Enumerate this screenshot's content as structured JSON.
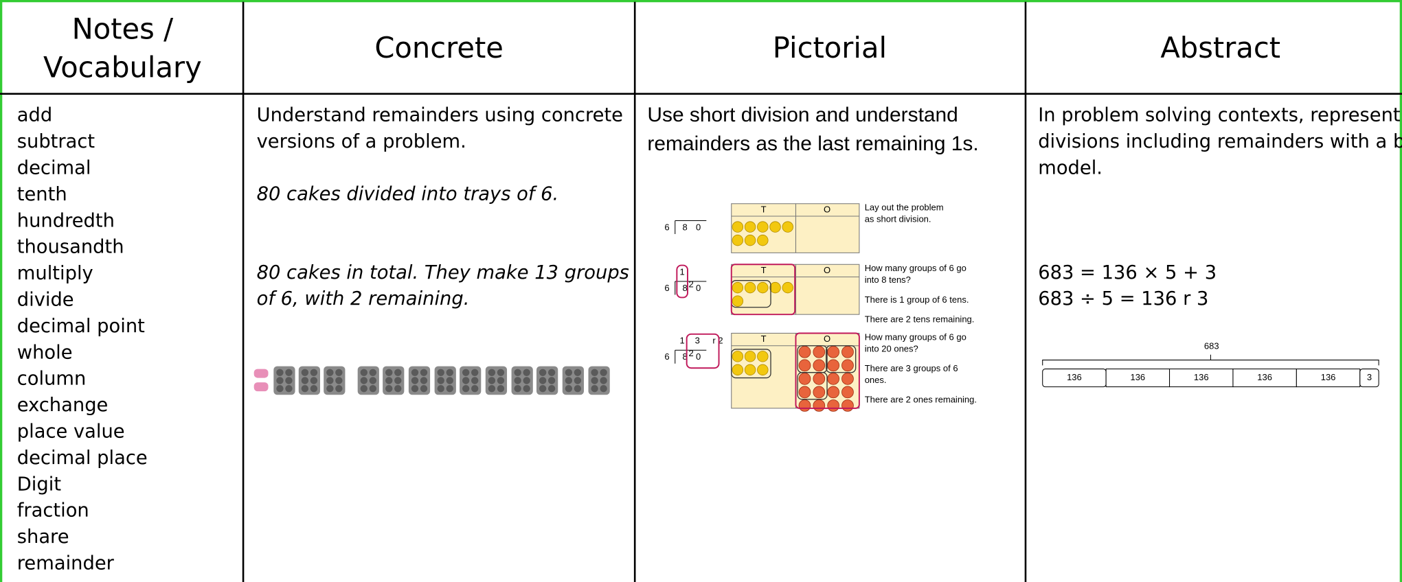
{
  "header": {
    "columns": [
      [
        "Notes /",
        "Vocabulary"
      ],
      [
        "Concrete"
      ],
      [
        "Pictorial"
      ],
      [
        "Abstract"
      ]
    ]
  },
  "vocabulary": [
    "add",
    "subtract",
    "decimal",
    "tenth",
    "hundredth",
    "thousandth",
    "multiply",
    "divide",
    "decimal point",
    "whole",
    "column",
    "exchange",
    "place value",
    "decimal place",
    "Digit",
    "fraction",
    "share",
    "remainder"
  ],
  "concrete": {
    "intro": [
      "Understand remainders using concrete",
      "versions of a problem."
    ],
    "example": "80 cakes divided into trays of 6.",
    "result": [
      "80 cakes in total. They make 13 groups",
      "of 6, with 2 remaining."
    ]
  },
  "pictorial": {
    "intro": [
      "Use short division and understand",
      "remainders as the last remaining 1s."
    ],
    "place_value_headers": [
      "T",
      "O"
    ],
    "steps": [
      {
        "divisor": "6",
        "dividend": [
          "8",
          "0"
        ],
        "notes": [
          [
            "Lay out the problem",
            "as short division."
          ]
        ]
      },
      {
        "divisor": "6",
        "dividend": [
          "8",
          "0"
        ],
        "carry": "2",
        "quotient": [
          "1"
        ],
        "notes": [
          [
            "How many groups of 6 go",
            "into 8 tens?"
          ],
          [
            "There is 1 group of 6 tens."
          ],
          [
            "There are 2 tens remaining."
          ]
        ]
      },
      {
        "divisor": "6",
        "dividend": [
          "8",
          "0"
        ],
        "carry": "2",
        "quotient": [
          "1",
          "3",
          "r 2"
        ],
        "notes": [
          [
            "How many groups of 6 go",
            "into 20 ones?"
          ],
          [
            "There are 3 groups of 6",
            "ones."
          ],
          [
            "There are 2 ones remaining."
          ]
        ]
      }
    ]
  },
  "abstract": {
    "intro": [
      "In problem solving contexts, represent",
      "divisions including remainders with a bar",
      "model."
    ],
    "equations": [
      "683 = 136 × 5 + 3",
      "683 ÷ 5 = 136 r 3"
    ],
    "bar_model": {
      "total": "683",
      "parts": [
        "136",
        "136",
        "136",
        "136",
        "136",
        "3"
      ]
    }
  }
}
